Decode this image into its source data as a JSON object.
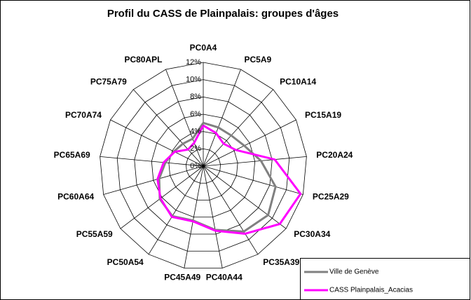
{
  "chart_data": {
    "type": "radar",
    "title": "Profil du CASS de Plainpalais: groupes d'âges",
    "categories": [
      "PC0A4",
      "PC5A9",
      "PC10A14",
      "PC15A19",
      "PC20A24",
      "PC25A29",
      "PC30A34",
      "PC35A39",
      "PC40A44",
      "PC45A49",
      "PC50A54",
      "PC55A59",
      "PC60A64",
      "PC65A69",
      "PC70A74",
      "PC75A79",
      "PC80APL"
    ],
    "series": [
      {
        "name": "Ville de Genève",
        "color": "#808080",
        "values": [
          5.0,
          4.8,
          4.8,
          5.3,
          6.7,
          8.7,
          9.4,
          8.9,
          7.5,
          6.4,
          6.8,
          6.3,
          5.3,
          4.4,
          3.8,
          3.5,
          3.4
        ]
      },
      {
        "name": "CASS Plainpalais_Acacias",
        "color": "#ff00ff",
        "values": [
          4.7,
          4.1,
          3.5,
          4.2,
          8.3,
          11.7,
          11.1,
          9.2,
          7.6,
          6.5,
          6.9,
          6.2,
          5.5,
          4.6,
          3.7,
          2.6,
          2.9
        ]
      }
    ],
    "ylim": [
      0,
      12
    ],
    "yticks": [
      {
        "value": 0,
        "label": "0%"
      },
      {
        "value": 2,
        "label": "2%"
      },
      {
        "value": 4,
        "label": "4%"
      },
      {
        "value": 6,
        "label": "6%"
      },
      {
        "value": 8,
        "label": "8%"
      },
      {
        "value": 10,
        "label": "10%"
      },
      {
        "value": 12,
        "label": "12%"
      }
    ],
    "grid": true
  }
}
